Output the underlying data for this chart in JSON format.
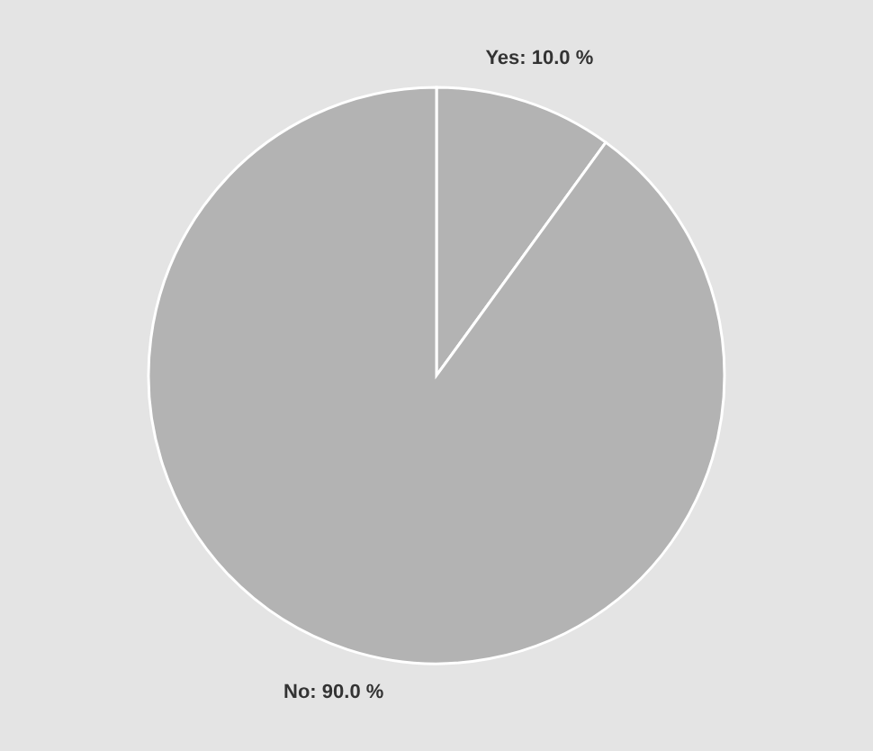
{
  "chart_data": {
    "type": "pie",
    "categories": [
      "Yes",
      "No"
    ],
    "values": [
      10,
      90
    ],
    "colors": [
      "#b3b3b3",
      "#b3b3b3"
    ],
    "value_labels": [
      "10.0 %",
      "90.0 %"
    ]
  }
}
